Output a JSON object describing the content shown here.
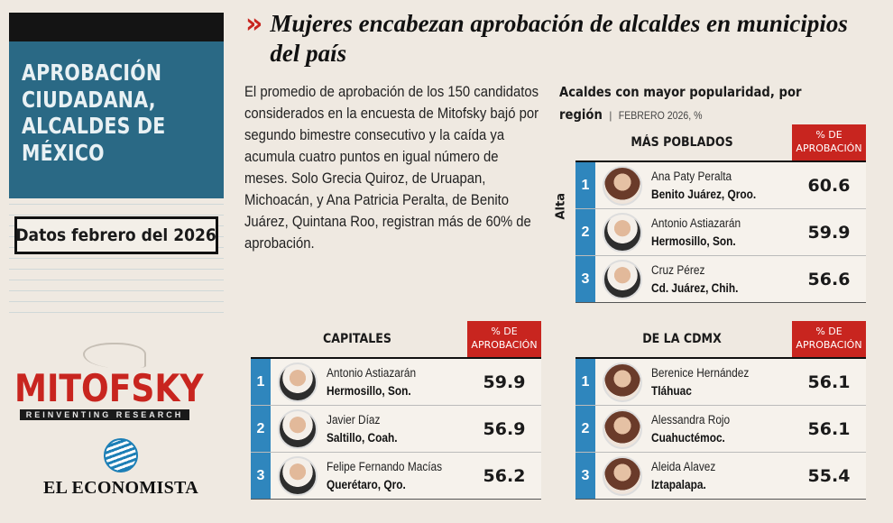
{
  "sidebar": {
    "title_lines": [
      "APROBACIÓN",
      "CIUDADANA,",
      "ALCALDES DE",
      "MÉXICO"
    ],
    "date_label": "Datos febrero del 2026"
  },
  "logos": {
    "mitofsky": "MITOFSKY",
    "mitofsky_tagline": "REINVENTING RESEARCH",
    "economista": "EL ECONOMISTA"
  },
  "headline": {
    "chevron": "»",
    "text": "Mujeres encabezan aprobación de alcaldes en municipios del país"
  },
  "body_text": "El promedio de aprobación de los 150 candidatos considerados en la encuesta de Mitofsky bajó por segundo bimestre consecutivo y la caída ya acumula cuatro puntos en igual número de meses. Solo Grecia Quiroz, de Uruapan, Michoacán, y Ana Patricia Peralta, de Benito Juárez, Quintana Roo, registran más de 60% de aprobación.",
  "region": {
    "title_line1": "Acaldes con mayor popularidad, por",
    "title_line2": "región",
    "subtitle": "FEBRERO 2026, %"
  },
  "pct_label_line1": "% DE",
  "pct_label_line2": "APROBACIÓN",
  "alta_label": "Alta",
  "panels": {
    "poblados": {
      "title": "MÁS POBLADOS",
      "rows": [
        {
          "rank": "1",
          "name": "Ana Paty Peralta",
          "place": "Benito Juárez, Qroo.",
          "value": "60.6"
        },
        {
          "rank": "2",
          "name": "Antonio Astiazarán",
          "place": "Hermosillo, Son.",
          "value": "59.9"
        },
        {
          "rank": "3",
          "name": "Cruz Pérez",
          "place": "Cd. Juárez, Chih.",
          "value": "56.6"
        }
      ]
    },
    "capitales": {
      "title": "CAPITALES",
      "rows": [
        {
          "rank": "1",
          "name": "Antonio Astiazarán",
          "place": "Hermosillo, Son.",
          "value": "59.9"
        },
        {
          "rank": "2",
          "name": "Javier Díaz",
          "place": "Saltillo, Coah.",
          "value": "56.9"
        },
        {
          "rank": "3",
          "name": "Felipe Fernando Macías",
          "place": "Querétaro, Qro.",
          "value": "56.2"
        }
      ]
    },
    "cdmx": {
      "title": "DE LA CDMX",
      "rows": [
        {
          "rank": "1",
          "name": "Berenice Hernández",
          "place": "Tláhuac",
          "value": "56.1"
        },
        {
          "rank": "2",
          "name": "Alessandra Rojo",
          "place": "Cuahuctémoc.",
          "value": "56.1"
        },
        {
          "rank": "3",
          "name": "Aleida Alavez",
          "place": "Iztapalapa.",
          "value": "55.4"
        }
      ]
    }
  }
}
